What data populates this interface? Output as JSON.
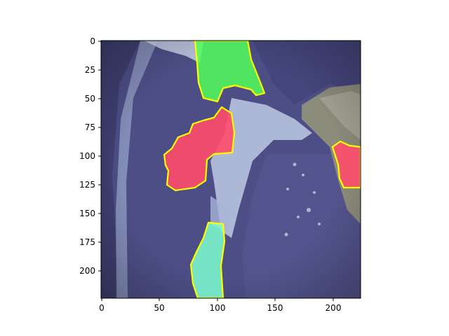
{
  "figure": {
    "x_ticks": [
      "0",
      "50",
      "100",
      "150",
      "200"
    ],
    "y_ticks": [
      "0",
      "25",
      "50",
      "75",
      "100",
      "125",
      "150",
      "175",
      "200"
    ],
    "x_range": [
      0,
      224
    ],
    "y_range": [
      0,
      224
    ],
    "colors": {
      "background_tissue": "#4d4e86",
      "outline": "#ffff00",
      "region_green": "#52ff5a",
      "region_red": "#ff4d6a",
      "region_cyan": "#7effd0",
      "fascia": "#b8c3df",
      "gray_tissue": "#8c8c7c"
    },
    "regions": [
      {
        "name": "green-region",
        "color": "region_green"
      },
      {
        "name": "red-region-left",
        "color": "region_red"
      },
      {
        "name": "red-region-right",
        "color": "region_red"
      },
      {
        "name": "cyan-region",
        "color": "region_cyan"
      }
    ]
  }
}
